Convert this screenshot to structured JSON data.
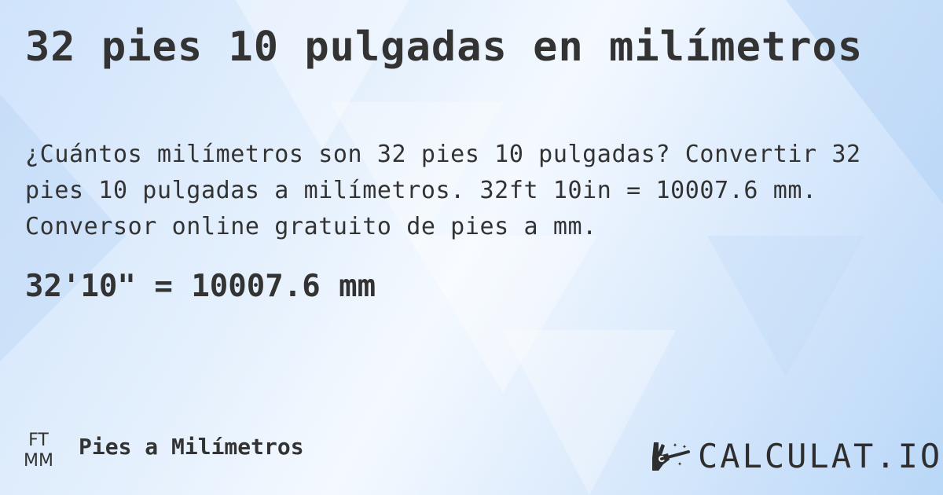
{
  "title": "32 pies 10 pulgadas en milímetros",
  "description": "¿Cuántos milímetros son 32 pies 10 pulgadas? Convertir 32 pies 10 pulgadas a milímetros. 32ft 10in = 10007.6 mm. Conversor online gratuito de pies a mm.",
  "result": "32'10\" = 10007.6 mm",
  "footer": {
    "unit_from": "FT",
    "unit_to": "MM",
    "link_label": "Pies a Milímetros",
    "logo_text": "CALCULAT.IO",
    "logo_icon": "magic-hand-wand-icon"
  },
  "colors": {
    "text": "#333333",
    "background": "#dcebfc"
  }
}
